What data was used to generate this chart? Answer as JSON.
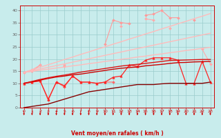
{
  "x": [
    0,
    1,
    2,
    3,
    4,
    5,
    6,
    7,
    8,
    9,
    10,
    11,
    12,
    13,
    14,
    15,
    16,
    17,
    18,
    19,
    20,
    21,
    22,
    23
  ],
  "series": [
    {
      "name": "line1_light_scattered",
      "color": "#ff9999",
      "linewidth": 0.8,
      "marker": "D",
      "markersize": 2.0,
      "y": [
        14.5,
        15.0,
        17.5,
        null,
        null,
        17.0,
        null,
        null,
        null,
        null,
        26.0,
        36.0,
        35.0,
        34.5,
        null,
        38.0,
        38.5,
        40.0,
        37.0,
        37.0,
        null,
        36.0,
        null,
        null
      ]
    },
    {
      "name": "line2_light_scattered2",
      "color": "#ffaaaa",
      "linewidth": 0.8,
      "marker": "D",
      "markersize": 2.0,
      "y": [
        14.5,
        15.5,
        17.5,
        null,
        null,
        17.5,
        null,
        null,
        null,
        null,
        null,
        null,
        33.5,
        null,
        null,
        36.5,
        36.0,
        null,
        32.5,
        null,
        null,
        null,
        24.0,
        18.0
      ]
    },
    {
      "name": "line3_pink_slope_steep",
      "color": "#ffbbbb",
      "linewidth": 1.0,
      "marker": null,
      "y": [
        14.5,
        15.6,
        16.6,
        17.7,
        18.7,
        19.8,
        20.8,
        21.9,
        22.9,
        24.0,
        25.0,
        26.1,
        27.1,
        28.2,
        29.2,
        30.3,
        31.3,
        32.4,
        33.4,
        34.5,
        35.5,
        36.6,
        37.6,
        38.7
      ]
    },
    {
      "name": "line4_pink_slope_mid",
      "color": "#ffbbbb",
      "linewidth": 1.0,
      "marker": null,
      "y": [
        14.5,
        15.2,
        15.9,
        16.6,
        17.3,
        18.0,
        18.7,
        19.4,
        20.1,
        20.8,
        21.5,
        22.2,
        22.9,
        23.6,
        24.3,
        25.0,
        25.7,
        26.4,
        27.1,
        27.8,
        28.5,
        29.2,
        29.9,
        30.6
      ]
    },
    {
      "name": "line5_pink_slope_shallow",
      "color": "#ffbbbb",
      "linewidth": 1.0,
      "marker": null,
      "y": [
        14.5,
        14.9,
        15.4,
        15.8,
        16.3,
        16.7,
        17.2,
        17.6,
        18.1,
        18.5,
        19.0,
        19.4,
        19.9,
        20.3,
        20.8,
        21.2,
        21.7,
        22.1,
        22.6,
        23.0,
        23.5,
        23.9,
        24.4,
        24.8
      ]
    },
    {
      "name": "line6_red_dotted_upper",
      "color": "#ff6666",
      "linewidth": 0.8,
      "marker": "D",
      "markersize": 2.0,
      "y": [
        10.0,
        10.5,
        11.0,
        3.0,
        10.5,
        8.5,
        13.0,
        10.5,
        10.5,
        10.0,
        10.5,
        10.5,
        null,
        null,
        null,
        null,
        null,
        null,
        null,
        null,
        null,
        null,
        null,
        null
      ]
    },
    {
      "name": "line7_bright_red_markers",
      "color": "#ff2222",
      "linewidth": 0.9,
      "marker": "^",
      "markersize": 2.5,
      "y": [
        10.0,
        10.5,
        11.0,
        3.5,
        10.5,
        9.0,
        13.0,
        10.5,
        10.5,
        10.0,
        10.5,
        12.5,
        13.0,
        17.5,
        17.0,
        19.5,
        20.5,
        20.5,
        20.5,
        19.5,
        10.0,
        10.0,
        19.0,
        10.5
      ]
    },
    {
      "name": "line8_red_smooth1",
      "color": "#cc0000",
      "linewidth": 1.0,
      "marker": null,
      "y": [
        10.0,
        10.6,
        11.3,
        12.0,
        12.6,
        13.0,
        13.5,
        13.8,
        14.3,
        14.8,
        15.3,
        15.8,
        16.2,
        16.5,
        16.7,
        17.2,
        17.5,
        17.8,
        18.2,
        18.5,
        18.6,
        18.8,
        18.9,
        19.0
      ]
    },
    {
      "name": "line9_red_smooth2",
      "color": "#dd1111",
      "linewidth": 1.0,
      "marker": null,
      "y": [
        10.0,
        10.8,
        11.6,
        12.3,
        12.9,
        13.4,
        14.0,
        14.6,
        15.1,
        15.6,
        16.1,
        16.6,
        17.1,
        17.5,
        17.8,
        18.2,
        18.6,
        19.0,
        19.4,
        19.5,
        19.6,
        19.7,
        19.8,
        19.8
      ]
    },
    {
      "name": "line10_darkred_bottom",
      "color": "#880000",
      "linewidth": 1.0,
      "marker": null,
      "y": [
        0.0,
        0.5,
        1.0,
        1.5,
        2.5,
        3.5,
        4.5,
        5.5,
        6.5,
        7.0,
        7.5,
        8.0,
        8.5,
        9.0,
        9.5,
        9.5,
        9.5,
        9.8,
        10.0,
        10.0,
        10.0,
        10.0,
        10.0,
        10.5
      ]
    }
  ],
  "xlim": [
    -0.5,
    23.5
  ],
  "ylim": [
    0,
    42
  ],
  "yticks": [
    0,
    5,
    10,
    15,
    20,
    25,
    30,
    35,
    40
  ],
  "xticks": [
    0,
    1,
    2,
    3,
    4,
    5,
    6,
    7,
    8,
    9,
    10,
    11,
    12,
    13,
    14,
    15,
    16,
    17,
    18,
    19,
    20,
    21,
    22,
    23
  ],
  "xlabel": "Vent moyen/en rafales ( km/h )",
  "background_color": "#c8ecec",
  "grid_color": "#99cccc",
  "tick_color": "#cc0000",
  "label_color": "#cc0000",
  "ytick_color": "#666666"
}
